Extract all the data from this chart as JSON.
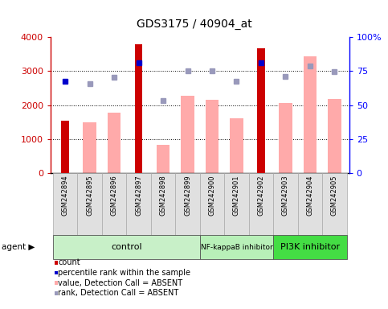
{
  "title": "GDS3175 / 40904_at",
  "samples": [
    "GSM242894",
    "GSM242895",
    "GSM242896",
    "GSM242897",
    "GSM242898",
    "GSM242899",
    "GSM242900",
    "GSM242901",
    "GSM242902",
    "GSM242903",
    "GSM242904",
    "GSM242905"
  ],
  "count_values": [
    1550,
    null,
    null,
    3800,
    null,
    null,
    null,
    null,
    3680,
    null,
    null,
    null
  ],
  "absent_value_bars": [
    null,
    1490,
    1780,
    null,
    830,
    2270,
    2150,
    1600,
    null,
    2060,
    3430,
    2180
  ],
  "rank_dots_present": [
    2700,
    null,
    null,
    3250,
    null,
    null,
    null,
    null,
    3250,
    null,
    null,
    null
  ],
  "rank_dots_absent": [
    null,
    2620,
    2830,
    null,
    2140,
    3010,
    3010,
    2710,
    null,
    2840,
    3160,
    2990
  ],
  "groups": [
    {
      "label": "control",
      "start": 0,
      "end": 6,
      "color": "#c8f0c8"
    },
    {
      "label": "NF-kappaB inhibitor",
      "start": 6,
      "end": 9,
      "color": "#b8f0b8"
    },
    {
      "label": "PI3K inhibitor",
      "start": 9,
      "end": 12,
      "color": "#44dd44"
    }
  ],
  "ylim": [
    0,
    4000
  ],
  "y2lim": [
    0,
    100
  ],
  "yticks": [
    0,
    1000,
    2000,
    3000,
    4000
  ],
  "ytick_labels": [
    "0",
    "1000",
    "2000",
    "3000",
    "4000"
  ],
  "y2ticks": [
    0,
    25,
    50,
    75,
    100
  ],
  "y2tick_labels": [
    "0",
    "25",
    "50",
    "75",
    "100%"
  ],
  "count_color": "#cc0000",
  "absent_bar_color": "#ffaaaa",
  "rank_present_color": "#0000cc",
  "rank_absent_color": "#9999bb",
  "legend_items": [
    {
      "color": "#cc0000",
      "label": "count"
    },
    {
      "color": "#0000cc",
      "label": "percentile rank within the sample"
    },
    {
      "color": "#ffaaaa",
      "label": "value, Detection Call = ABSENT"
    },
    {
      "color": "#9999bb",
      "label": "rank, Detection Call = ABSENT"
    }
  ]
}
